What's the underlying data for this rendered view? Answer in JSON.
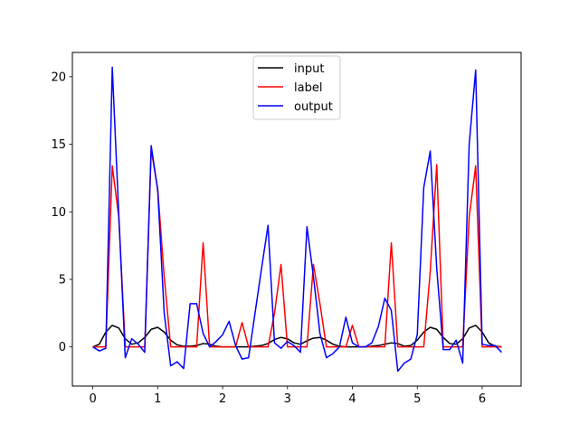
{
  "chart_data": {
    "type": "line",
    "title": "",
    "xlabel": "",
    "ylabel": "",
    "xlim": [
      -0.315,
      6.6
    ],
    "ylim": [
      -2.9,
      21.8
    ],
    "xticks": [
      0,
      1,
      2,
      3,
      4,
      5,
      6
    ],
    "xtick_labels": [
      "0",
      "1",
      "2",
      "3",
      "4",
      "5",
      "6"
    ],
    "yticks": [
      0,
      5,
      10,
      15,
      20
    ],
    "ytick_labels": [
      "0",
      "5",
      "10",
      "15",
      "20"
    ],
    "grid": false,
    "legend": {
      "position": "top-center"
    },
    "x": [
      0,
      0.1,
      0.2,
      0.3,
      0.4,
      0.5,
      0.6,
      0.7,
      0.8,
      0.9,
      1.0,
      1.1,
      1.2,
      1.3,
      1.4,
      1.5,
      1.6,
      1.7,
      1.8,
      1.9,
      2.0,
      2.1,
      2.2,
      2.3,
      2.4,
      2.5,
      2.6,
      2.7,
      2.8,
      2.9,
      3.0,
      3.1,
      3.2,
      3.3,
      3.4,
      3.5,
      3.6,
      3.7,
      3.8,
      3.9,
      4.0,
      4.1,
      4.2,
      4.3,
      4.4,
      4.5,
      4.6,
      4.7,
      4.8,
      4.9,
      5.0,
      5.1,
      5.2,
      5.3,
      5.4,
      5.5,
      5.6,
      5.7,
      5.8,
      5.9,
      6.0,
      6.1,
      6.2,
      6.3
    ],
    "series": [
      {
        "name": "input",
        "color": "#000000",
        "values": [
          0,
          0.2,
          1.1,
          1.6,
          1.4,
          0.6,
          0.2,
          0.3,
          0.7,
          1.3,
          1.45,
          1.1,
          0.5,
          0.15,
          0.05,
          0.05,
          0.1,
          0.25,
          0.2,
          0.05,
          0.0,
          0.0,
          0.0,
          0.0,
          0.0,
          0.05,
          0.1,
          0.25,
          0.55,
          0.7,
          0.6,
          0.3,
          0.2,
          0.45,
          0.65,
          0.7,
          0.5,
          0.2,
          0.05,
          0.0,
          0.0,
          0.0,
          0.0,
          0.05,
          0.1,
          0.2,
          0.3,
          0.25,
          0.05,
          0.1,
          0.5,
          1.1,
          1.45,
          1.3,
          0.7,
          0.25,
          0.2,
          0.6,
          1.4,
          1.6,
          1.1,
          0.3,
          0.05,
          0
        ]
      },
      {
        "name": "label",
        "color": "#ff0000",
        "values": [
          0,
          0,
          0,
          13.4,
          9.6,
          0,
          0,
          0,
          0,
          14.6,
          11.7,
          5.2,
          0,
          0,
          0,
          0,
          0,
          7.7,
          0,
          0,
          0,
          0,
          0,
          1.8,
          0,
          0,
          0,
          0,
          2.5,
          6.1,
          0,
          0,
          0,
          0,
          6.1,
          3.2,
          0,
          0,
          0,
          0,
          1.6,
          0,
          0,
          0,
          0,
          0,
          7.7,
          0,
          0,
          0,
          0,
          0,
          5.6,
          13.5,
          0,
          0,
          0,
          0,
          9.6,
          13.4,
          0,
          0,
          0,
          0
        ]
      },
      {
        "name": "output",
        "color": "#0000ff",
        "values": [
          0,
          -0.3,
          -0.1,
          20.7,
          9.8,
          -0.8,
          0.6,
          0.2,
          -0.4,
          14.9,
          11.6,
          2.5,
          -1.4,
          -1.1,
          -1.6,
          3.2,
          3.2,
          1.0,
          0.0,
          0.4,
          0.9,
          1.9,
          0.1,
          -0.9,
          -0.8,
          2.5,
          5.8,
          9.0,
          0.3,
          -0.1,
          0.4,
          0.1,
          -0.4,
          8.9,
          5.2,
          1.0,
          -0.8,
          -0.5,
          0.0,
          2.2,
          0.3,
          0.0,
          0.0,
          0.3,
          1.5,
          3.6,
          2.7,
          -1.8,
          -1.2,
          -0.9,
          0.9,
          11.8,
          14.5,
          5.8,
          -0.2,
          -0.2,
          0.5,
          -1.2,
          15.0,
          20.5,
          0.2,
          0.1,
          0.1,
          -0.4
        ]
      }
    ]
  }
}
